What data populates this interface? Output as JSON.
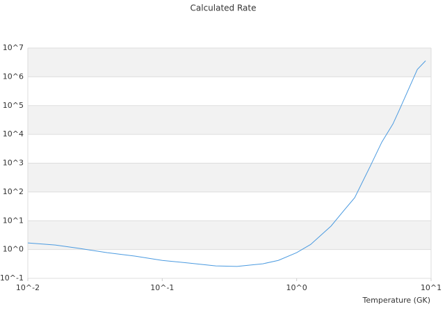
{
  "chart_data": {
    "type": "line",
    "title": "Calculated Rate",
    "x_label": "Temperature (GK)",
    "x_scale": "log",
    "y_scale": "log",
    "grid": true,
    "bands": true,
    "xlim": [
      0.01,
      10
    ],
    "ylim": [
      0.1,
      10000000
    ],
    "xticks": [
      {
        "value": 0.01,
        "label": "10^-2"
      },
      {
        "value": 0.1,
        "label": "10^-1"
      },
      {
        "value": 1,
        "label": "10^0"
      },
      {
        "value": 10,
        "label": "10^1"
      }
    ],
    "yticks": [
      {
        "value": 0.1,
        "label": "10^-1"
      },
      {
        "value": 1,
        "label": "10^0"
      },
      {
        "value": 10,
        "label": "10^1"
      },
      {
        "value": 100,
        "label": "10^2"
      },
      {
        "value": 1000,
        "label": "10^3"
      },
      {
        "value": 10000,
        "label": "10^4"
      },
      {
        "value": 100000,
        "label": "10^5"
      },
      {
        "value": 1000000,
        "label": "10^6"
      },
      {
        "value": 10000000,
        "label": "10^7"
      }
    ],
    "x": [
      0.01,
      0.016,
      0.024,
      0.039,
      0.063,
      0.1,
      0.157,
      0.25,
      0.36,
      0.56,
      0.73,
      1.0,
      1.27,
      1.8,
      2.25,
      2.7,
      3.5,
      4.3,
      5.2,
      5.8,
      7.9,
      9.1
    ],
    "series": [
      {
        "color": "#4a9ae0",
        "values": [
          1.7,
          1.44,
          1.1,
          0.78,
          0.59,
          0.42,
          0.34,
          0.27,
          0.26,
          0.32,
          0.42,
          0.78,
          1.5,
          6.5,
          23,
          63,
          730,
          5400,
          23000,
          70000,
          1800000,
          3600000
        ]
      }
    ]
  }
}
